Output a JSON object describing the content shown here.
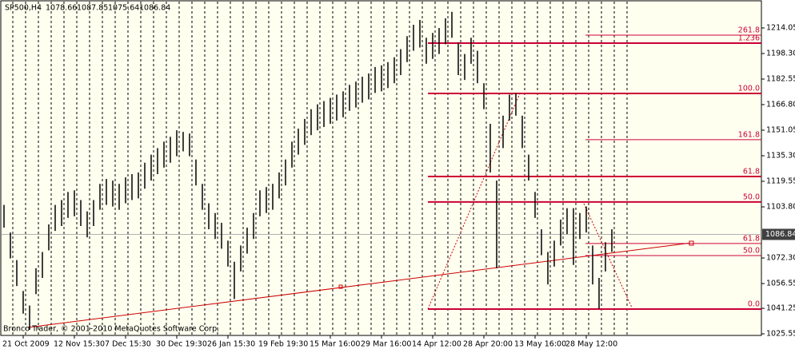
{
  "chart_data": {
    "type": "ohlc",
    "symbol": "SP500,H4",
    "header_prices": [
      1078.66,
      1087.85,
      1075.64,
      1086.84
    ],
    "footer": "Bronco Trader, © 2001-2010 MetaQuotes Software Corp.",
    "current_price": 1086.84,
    "color": "#000000",
    "ylim": [
      1024.57,
      1231.28
    ],
    "yticks": [
      1214.05,
      {
        "value": 1198.3,
        "label": "1198.30"
      },
      1182.55,
      {
        "value": 1166.8,
        "label": "1166.80"
      },
      1151.05,
      {
        "value": 1135.3,
        "label": "1135.30"
      },
      1119.55,
      {
        "value": 1103.8,
        "label": "1103.80"
      },
      {
        "value": 1072.3,
        "label": "1072.30"
      },
      1056.55,
      1041.25,
      1025.55
    ],
    "categories": [
      null,
      null,
      null,
      "21 Oct 2009",
      null,
      null,
      null,
      null,
      null,
      null,
      null,
      "12 Nov 15:30",
      null,
      null,
      null,
      null,
      null,
      null,
      null,
      "7 Dec 15:30",
      null,
      null,
      null,
      null,
      null,
      null,
      null,
      "30 Dec 19:30",
      null,
      null,
      null,
      null,
      null,
      null,
      null,
      "26 Jan 15:30",
      null,
      null,
      null,
      null,
      null,
      null,
      null,
      "19 Feb 19:30",
      null,
      null,
      null,
      null,
      null,
      null,
      null,
      "15 Mar 16:00",
      null,
      null,
      null,
      null,
      null,
      null,
      null,
      "29 Mar 16:00",
      null,
      null,
      null,
      null,
      null,
      null,
      null,
      "14 Apr 12:00",
      null,
      null,
      null,
      null,
      null,
      null,
      null,
      "28 Apr 20:00",
      null,
      null,
      null,
      null,
      null,
      null,
      null,
      "13 May 16:00",
      null,
      null,
      null,
      null,
      null,
      null,
      null,
      "28 May 12:00",
      null,
      null,
      null,
      null
    ],
    "high": [
      1105,
      1088,
      1071,
      1052,
      1043,
      1066,
      1076,
      1093,
      1105,
      1108,
      1113,
      1114,
      1108,
      1101,
      1108,
      1118,
      1121,
      1120,
      1118,
      1122,
      1124,
      1125,
      1131,
      1136,
      1140,
      1144,
      1147,
      1151,
      1150,
      1149,
      1133,
      1118,
      1106,
      1100,
      1094,
      1083,
      1070,
      1080,
      1091,
      1100,
      1114,
      1116,
      1118,
      1125,
      1133,
      1144,
      1152,
      1158,
      1164,
      1167,
      1169,
      1171,
      1173,
      1175,
      1179,
      1181,
      1184,
      1186,
      1190,
      1191,
      1193,
      1196,
      1201,
      1209,
      1216,
      1219,
      1208,
      1211,
      1214,
      1220,
      1224,
      1205,
      1198,
      1208,
      1200,
      1180,
      1155,
      1120,
      1160,
      1173,
      1174,
      1160,
      1136,
      1113,
      1090,
      1076,
      1083,
      1096,
      1103,
      1103,
      1100,
      1104,
      1080,
      1060,
      1082,
      1090
    ],
    "low": [
      1091,
      1072,
      1055,
      1038,
      1028,
      1050,
      1060,
      1077,
      1089,
      1092,
      1097,
      1098,
      1092,
      1085,
      1092,
      1102,
      1105,
      1104,
      1102,
      1106,
      1108,
      1109,
      1115,
      1120,
      1124,
      1128,
      1131,
      1135,
      1138,
      1135,
      1117,
      1102,
      1090,
      1084,
      1078,
      1067,
      1047,
      1064,
      1075,
      1084,
      1098,
      1100,
      1102,
      1109,
      1117,
      1128,
      1136,
      1142,
      1148,
      1151,
      1153,
      1155,
      1157,
      1159,
      1163,
      1165,
      1168,
      1170,
      1174,
      1175,
      1177,
      1180,
      1185,
      1193,
      1200,
      1202,
      1192,
      1195,
      1198,
      1204,
      1208,
      1185,
      1182,
      1192,
      1180,
      1164,
      1125,
      1066,
      1140,
      1157,
      1160,
      1140,
      1120,
      1097,
      1074,
      1056,
      1067,
      1080,
      1087,
      1068,
      1084,
      1088,
      1056,
      1041,
      1064,
      1076
    ],
    "fib_lines": [
      {
        "label": "261.8",
        "price": 1209.6,
        "style": "thin"
      },
      {
        "label": "1.236",
        "price": 1204.7,
        "style": "thick"
      },
      {
        "label": "100.0",
        "price": 1173.7,
        "style": "thick"
      },
      {
        "label": "161.8",
        "price": 1145.2,
        "style": "thin"
      },
      {
        "label": "61.8",
        "price": 1122.5,
        "style": "thick"
      },
      {
        "label": "50.0",
        "price": 1106.8,
        "style": "thick"
      },
      {
        "label": "61.8",
        "price": 1081.2,
        "style": "thin"
      },
      {
        "label": "50.0",
        "price": 1073.8,
        "style": "thin"
      },
      {
        "label": "0.0",
        "price": 1040.8,
        "style": "thick"
      }
    ]
  }
}
